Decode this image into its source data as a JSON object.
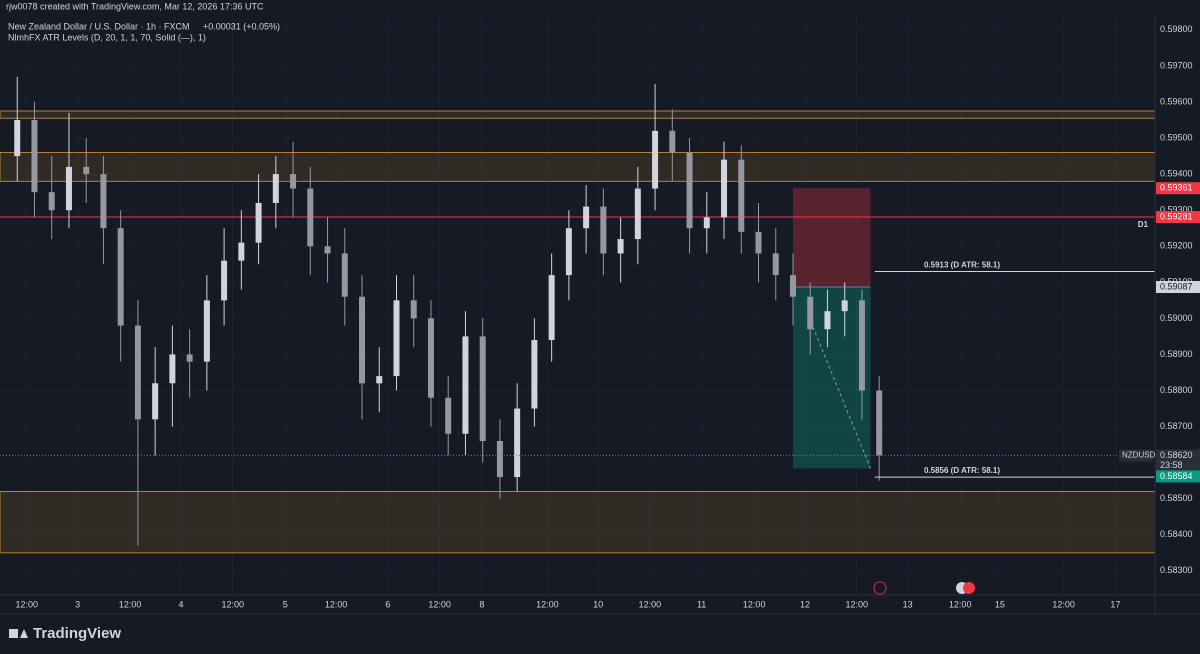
{
  "header": {
    "credit": "rjw0078 created with TradingView.com, Mar 12, 2026 17:36 UTC"
  },
  "footer": {
    "brand": "TradingView"
  },
  "chart_data": {
    "type": "candlestick",
    "title": "New Zealand Dollar / U.S. Dollar · 1h · FXCM",
    "change": "+0.00031 (+0.05%)",
    "indicator": "NlmhFX ATR Levels (D, 20, 1, 1, 70, Solid (—), 1)",
    "colors": {
      "up": "#d1d4dc",
      "down": "#9598a1",
      "zone": "#b5813a",
      "stop": "#f23645",
      "target": "#089981"
    },
    "xlim": [
      0,
      134
    ],
    "ylim": [
      0.58233,
      0.59844
    ],
    "x": [
      2,
      4,
      6,
      8,
      10,
      12,
      14,
      16,
      18,
      20,
      22,
      24,
      26,
      28,
      30,
      32,
      34,
      36,
      38,
      40,
      42,
      44,
      46,
      48,
      50,
      52,
      54,
      56,
      58,
      60,
      62,
      64,
      66,
      68,
      70,
      72,
      74,
      76,
      78,
      80,
      82,
      84,
      86,
      88,
      90,
      92,
      94,
      96,
      98,
      100,
      102
    ],
    "open": [
      0.5945,
      0.5955,
      0.5935,
      0.593,
      0.5942,
      0.594,
      0.5925,
      0.5898,
      0.5872,
      0.5882,
      0.589,
      0.5888,
      0.5905,
      0.5916,
      0.5921,
      0.5932,
      0.594,
      0.5936,
      0.592,
      0.5918,
      0.5906,
      0.5882,
      0.5884,
      0.5905,
      0.59,
      0.5878,
      0.5868,
      0.5895,
      0.5866,
      0.5856,
      0.5875,
      0.5894,
      0.5912,
      0.5925,
      0.5931,
      0.5918,
      0.5922,
      0.5936,
      0.5952,
      0.5946,
      0.5925,
      0.5928,
      0.5944,
      0.5924,
      0.5918,
      0.5912,
      0.5906,
      0.5897,
      0.5902,
      0.5905,
      0.588
    ],
    "high": [
      0.5967,
      0.596,
      0.5945,
      0.5957,
      0.595,
      0.5945,
      0.593,
      0.5905,
      0.5892,
      0.5898,
      0.5897,
      0.5912,
      0.5925,
      0.593,
      0.594,
      0.5945,
      0.5949,
      0.5942,
      0.5928,
      0.5925,
      0.5912,
      0.5892,
      0.5912,
      0.5912,
      0.5905,
      0.5884,
      0.5902,
      0.59,
      0.5872,
      0.5882,
      0.59,
      0.5918,
      0.593,
      0.5937,
      0.5936,
      0.5928,
      0.5942,
      0.5965,
      0.5958,
      0.595,
      0.5935,
      0.5949,
      0.5948,
      0.5932,
      0.5925,
      0.5918,
      0.591,
      0.5908,
      0.591,
      0.5908,
      0.5884
    ],
    "low": [
      0.5938,
      0.5928,
      0.5922,
      0.5925,
      0.5932,
      0.5915,
      0.5888,
      0.5837,
      0.5862,
      0.587,
      0.5878,
      0.588,
      0.5898,
      0.5908,
      0.5915,
      0.5925,
      0.5928,
      0.5912,
      0.591,
      0.5898,
      0.5872,
      0.5874,
      0.588,
      0.5892,
      0.587,
      0.5862,
      0.5862,
      0.586,
      0.585,
      0.5852,
      0.587,
      0.5888,
      0.5905,
      0.5918,
      0.5912,
      0.591,
      0.5915,
      0.593,
      0.5938,
      0.5918,
      0.5918,
      0.5922,
      0.5918,
      0.591,
      0.5905,
      0.5898,
      0.589,
      0.5892,
      0.5895,
      0.5872,
      0.5855
    ],
    "close": [
      0.5955,
      0.5935,
      0.593,
      0.5942,
      0.594,
      0.5925,
      0.5898,
      0.5872,
      0.5882,
      0.589,
      0.5888,
      0.5905,
      0.5916,
      0.5921,
      0.5932,
      0.594,
      0.5936,
      0.592,
      0.5918,
      0.5906,
      0.5882,
      0.5884,
      0.5905,
      0.59,
      0.5878,
      0.5868,
      0.5895,
      0.5866,
      0.5856,
      0.5875,
      0.5894,
      0.5912,
      0.5925,
      0.5931,
      0.5918,
      0.5922,
      0.5936,
      0.5952,
      0.5946,
      0.5925,
      0.5928,
      0.5944,
      0.5924,
      0.5918,
      0.5912,
      0.5906,
      0.5897,
      0.5902,
      0.5905,
      0.588,
      0.5862
    ],
    "yticks": [
      {
        "value": 0.583,
        "label": "0.58300"
      },
      {
        "value": 0.584,
        "label": "0.58400"
      },
      {
        "value": 0.585,
        "label": "0.58500"
      },
      {
        "value": 0.586,
        "label": "0.58600"
      },
      {
        "value": 0.587,
        "label": "0.58700"
      },
      {
        "value": 0.588,
        "label": "0.58800"
      },
      {
        "value": 0.589,
        "label": "0.58900"
      },
      {
        "value": 0.59,
        "label": "0.59000"
      },
      {
        "value": 0.591,
        "label": "0.59100"
      },
      {
        "value": 0.592,
        "label": "0.59200"
      },
      {
        "value": 0.593,
        "label": "0.59300"
      },
      {
        "value": 0.594,
        "label": "0.59400"
      },
      {
        "value": 0.595,
        "label": "0.59500"
      },
      {
        "value": 0.596,
        "label": "0.59600"
      },
      {
        "value": 0.597,
        "label": "0.59700"
      },
      {
        "value": 0.598,
        "label": "0.59800"
      }
    ],
    "xticks": [
      {
        "value": 3.1,
        "label": "12:00"
      },
      {
        "value": 9.0,
        "label": "3"
      },
      {
        "value": 15.1,
        "label": "12:00"
      },
      {
        "value": 21.0,
        "label": "4"
      },
      {
        "value": 27.0,
        "label": "12:00"
      },
      {
        "value": 33.1,
        "label": "5"
      },
      {
        "value": 39.0,
        "label": "12:00"
      },
      {
        "value": 45.0,
        "label": "6"
      },
      {
        "value": 51.0,
        "label": "12:00"
      },
      {
        "value": 55.9,
        "label": "8"
      },
      {
        "value": 63.5,
        "label": "12:00"
      },
      {
        "value": 69.4,
        "label": "10"
      },
      {
        "value": 75.4,
        "label": "12:00"
      },
      {
        "value": 81.4,
        "label": "11"
      },
      {
        "value": 87.5,
        "label": "12:00"
      },
      {
        "value": 93.4,
        "label": "12"
      },
      {
        "value": 99.4,
        "label": "12:00"
      },
      {
        "value": 105.3,
        "label": "13"
      },
      {
        "value": 111.4,
        "label": "12:00"
      },
      {
        "value": 116.0,
        "label": "15"
      },
      {
        "value": 123.4,
        "label": "12:00"
      },
      {
        "value": 129.4,
        "label": "17"
      }
    ],
    "zones": [
      [
        0.59575,
        0.59555
      ],
      [
        0.5946,
        0.5938
      ],
      [
        0.5852,
        0.5835
      ]
    ],
    "d1_level": {
      "value": 0.59281,
      "label": "D1"
    },
    "atr_levels": [
      {
        "value": 0.5913,
        "label": "0.5913 (D ATR: 58.1)",
        "x": 101.5
      },
      {
        "value": 0.5856,
        "label": "0.5856 (D ATR: 58.1)",
        "x": 101.5
      }
    ],
    "position": {
      "x": [
        92,
        101
      ],
      "stop": 0.59361,
      "entry": 0.59087,
      "target": 0.58584
    },
    "last_price": {
      "value": 0.5862,
      "label": "0.58620",
      "symbol": "NZDUSD",
      "countdown": "23:58"
    }
  }
}
